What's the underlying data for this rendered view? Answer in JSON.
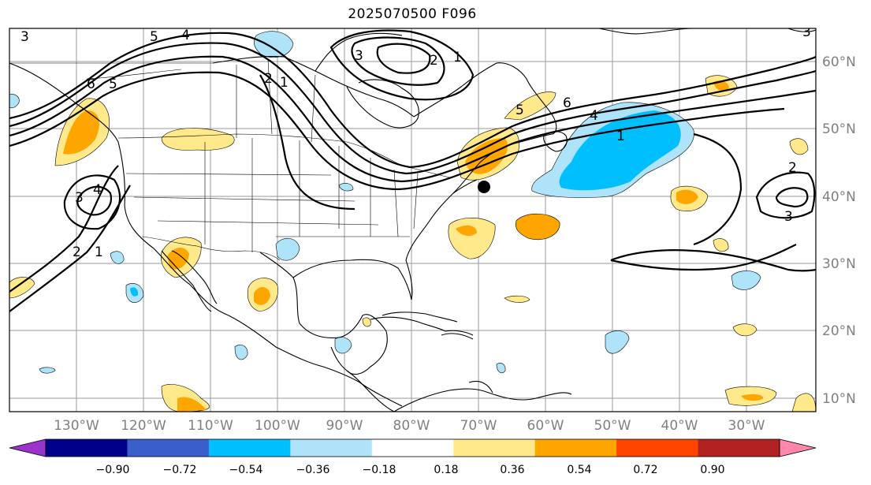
{
  "title": "2025070500 F096",
  "map": {
    "lon_labels": [
      "130°W",
      "120°W",
      "110°W",
      "100°W",
      "90°W",
      "80°W",
      "70°W",
      "60°W",
      "50°W",
      "40°W",
      "30°W"
    ],
    "lat_labels": [
      "60°N",
      "50°N",
      "40°N",
      "30°N",
      "20°N",
      "10°N"
    ],
    "contour_labels": [
      "5",
      "4",
      "6",
      "5",
      "3",
      "2",
      "1",
      "4",
      "3",
      "2",
      "1",
      "3",
      "3",
      "2",
      "1",
      "6",
      "5",
      "4",
      "1",
      "2",
      "3"
    ],
    "storm_marker": "black-dot"
  },
  "colorbar": {
    "ticks": [
      "−0.90",
      "−0.72",
      "−0.54",
      "−0.36",
      "−0.18",
      "0.18",
      "0.36",
      "0.54",
      "0.72",
      "0.90"
    ],
    "colors": [
      "#9933cc",
      "#00008b",
      "#3a5fcd",
      "#00bfff",
      "#aee3f9",
      "#ffffff",
      "#ffe98a",
      "#ffa500",
      "#ff4500",
      "#b22222",
      "#ff88aa"
    ],
    "extend": "both"
  }
}
